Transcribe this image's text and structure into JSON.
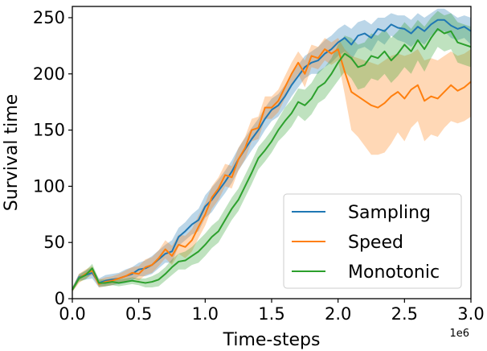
{
  "chart_data": {
    "type": "line",
    "xlabel": "Time-steps",
    "ylabel": "Survival time",
    "x_offset_label": "1e6",
    "xlim": [
      0,
      3.0
    ],
    "ylim": [
      0,
      260
    ],
    "xticks": [
      0,
      0.5,
      1.0,
      1.5,
      2.0,
      2.5,
      3.0
    ],
    "xtick_labels": [
      "0.0",
      "0.5",
      "1.0",
      "1.5",
      "2.0",
      "2.5",
      "3.0"
    ],
    "yticks": [
      0,
      50,
      100,
      150,
      200,
      250
    ],
    "ytick_labels": [
      "0",
      "50",
      "100",
      "150",
      "200",
      "250"
    ],
    "legend_position": "lower-right",
    "x": [
      0.0,
      0.05,
      0.1,
      0.15,
      0.2,
      0.25,
      0.3,
      0.35,
      0.4,
      0.45,
      0.5,
      0.55,
      0.6,
      0.65,
      0.7,
      0.75,
      0.8,
      0.85,
      0.9,
      0.95,
      1.0,
      1.05,
      1.1,
      1.15,
      1.2,
      1.25,
      1.3,
      1.35,
      1.4,
      1.45,
      1.5,
      1.55,
      1.6,
      1.65,
      1.7,
      1.75,
      1.8,
      1.85,
      1.9,
      1.95,
      2.0,
      2.05,
      2.1,
      2.15,
      2.2,
      2.25,
      2.3,
      2.35,
      2.4,
      2.45,
      2.5,
      2.55,
      2.6,
      2.65,
      2.7,
      2.75,
      2.8,
      2.85,
      2.9,
      2.95,
      3.0
    ],
    "series": [
      {
        "name": "Sampling",
        "color": "#1f77b4",
        "values": [
          8,
          19,
          21,
          23,
          14,
          16,
          17,
          18,
          20,
          22,
          26,
          27,
          30,
          35,
          40,
          42,
          55,
          60,
          66,
          70,
          82,
          88,
          96,
          104,
          113,
          124,
          133,
          142,
          150,
          160,
          168,
          172,
          180,
          190,
          198,
          206,
          210,
          212,
          218,
          222,
          228,
          232,
          226,
          234,
          236,
          232,
          240,
          238,
          244,
          241,
          240,
          236,
          242,
          238,
          244,
          248,
          248,
          243,
          240,
          242,
          238
        ],
        "upper": [
          10,
          22,
          25,
          28,
          18,
          21,
          22,
          23,
          26,
          28,
          32,
          34,
          38,
          43,
          48,
          52,
          63,
          68,
          75,
          80,
          92,
          99,
          106,
          114,
          123,
          134,
          143,
          152,
          160,
          170,
          178,
          182,
          190,
          200,
          208,
          216,
          220,
          224,
          230,
          234,
          240,
          244,
          240,
          246,
          248,
          244,
          250,
          250,
          254,
          252,
          252,
          248,
          254,
          250,
          254,
          258,
          258,
          254,
          250,
          252,
          250
        ],
        "lower": [
          6,
          16,
          17,
          18,
          10,
          11,
          12,
          13,
          14,
          16,
          20,
          20,
          22,
          27,
          32,
          32,
          47,
          52,
          57,
          60,
          72,
          77,
          86,
          94,
          103,
          114,
          123,
          132,
          140,
          150,
          158,
          162,
          170,
          180,
          188,
          196,
          200,
          200,
          206,
          210,
          216,
          220,
          212,
          222,
          224,
          220,
          230,
          226,
          234,
          230,
          228,
          224,
          230,
          226,
          234,
          238,
          238,
          232,
          230,
          232,
          226
        ]
      },
      {
        "name": "Speed",
        "color": "#ff7f0e",
        "values": [
          8,
          18,
          22,
          25,
          13,
          15,
          16,
          18,
          20,
          23,
          22,
          28,
          30,
          36,
          44,
          38,
          48,
          46,
          52,
          64,
          75,
          90,
          98,
          110,
          108,
          124,
          134,
          150,
          152,
          170,
          170,
          176,
          188,
          200,
          210,
          200,
          216,
          214,
          222,
          218,
          222,
          202,
          184,
          180,
          176,
          172,
          170,
          174,
          180,
          184,
          178,
          186,
          190,
          176,
          180,
          178,
          184,
          190,
          185,
          188,
          193
        ],
        "upper": [
          10,
          22,
          26,
          29,
          17,
          19,
          20,
          22,
          25,
          28,
          29,
          35,
          37,
          43,
          52,
          47,
          57,
          56,
          62,
          74,
          85,
          100,
          108,
          120,
          118,
          134,
          144,
          160,
          162,
          180,
          180,
          186,
          198,
          210,
          220,
          212,
          226,
          224,
          232,
          228,
          232,
          222,
          216,
          214,
          212,
          210,
          208,
          212,
          216,
          218,
          216,
          218,
          222,
          212,
          214,
          212,
          216,
          220,
          216,
          218,
          222
        ],
        "lower": [
          6,
          14,
          18,
          21,
          10,
          11,
          12,
          14,
          15,
          18,
          16,
          21,
          23,
          29,
          36,
          30,
          40,
          36,
          42,
          54,
          65,
          80,
          88,
          100,
          98,
          114,
          124,
          140,
          142,
          160,
          160,
          166,
          178,
          190,
          200,
          188,
          206,
          204,
          212,
          208,
          212,
          182,
          150,
          144,
          136,
          128,
          128,
          130,
          138,
          148,
          140,
          152,
          158,
          140,
          146,
          144,
          152,
          158,
          156,
          158,
          162
        ]
      },
      {
        "name": "Monotonic",
        "color": "#2ca02c",
        "values": [
          8,
          18,
          21,
          27,
          14,
          14,
          15,
          14,
          15,
          16,
          15,
          14,
          15,
          17,
          22,
          28,
          33,
          34,
          38,
          42,
          48,
          55,
          60,
          70,
          80,
          88,
          100,
          112,
          125,
          132,
          140,
          150,
          158,
          165,
          175,
          172,
          178,
          188,
          192,
          200,
          210,
          218,
          214,
          206,
          208,
          216,
          214,
          220,
          212,
          218,
          226,
          220,
          230,
          222,
          232,
          240,
          236,
          238,
          228,
          226,
          224
        ],
        "upper": [
          10,
          21,
          25,
          31,
          17,
          17,
          18,
          17,
          18,
          19,
          18,
          18,
          20,
          23,
          28,
          35,
          40,
          42,
          46,
          52,
          58,
          65,
          70,
          80,
          90,
          98,
          110,
          122,
          135,
          142,
          150,
          160,
          170,
          177,
          187,
          186,
          192,
          202,
          206,
          214,
          226,
          234,
          232,
          226,
          228,
          236,
          234,
          240,
          232,
          238,
          246,
          240,
          248,
          242,
          250,
          256,
          252,
          254,
          246,
          244,
          242
        ],
        "lower": [
          6,
          15,
          17,
          23,
          11,
          11,
          12,
          11,
          12,
          13,
          12,
          10,
          10,
          11,
          16,
          21,
          26,
          26,
          30,
          32,
          38,
          45,
          50,
          60,
          70,
          78,
          90,
          102,
          115,
          122,
          130,
          140,
          146,
          153,
          163,
          158,
          164,
          174,
          178,
          186,
          194,
          202,
          196,
          186,
          188,
          196,
          194,
          200,
          192,
          198,
          206,
          200,
          212,
          202,
          214,
          224,
          220,
          222,
          210,
          208,
          206
        ]
      }
    ]
  }
}
